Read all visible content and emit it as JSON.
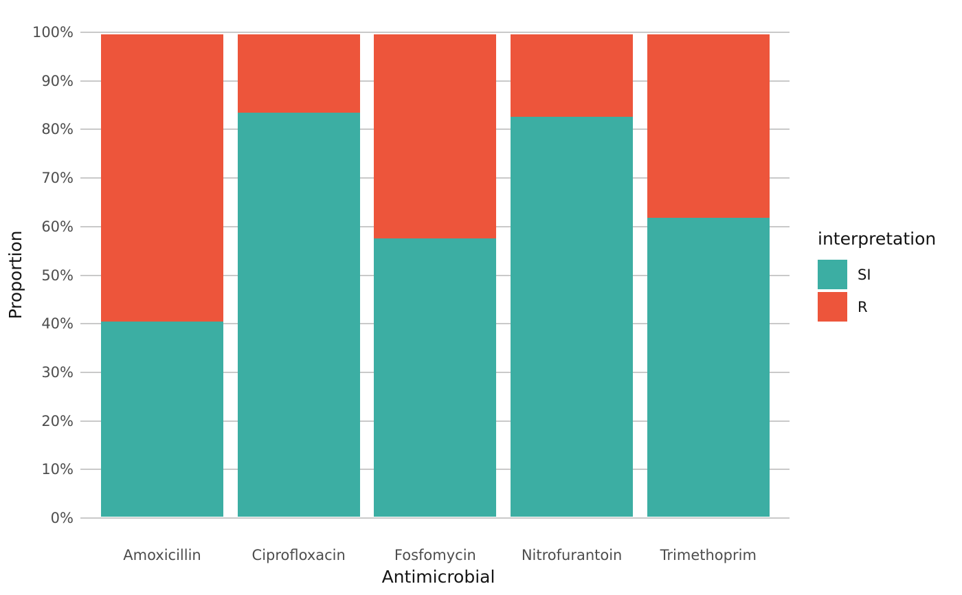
{
  "chart_data": {
    "type": "bar",
    "stacked": true,
    "percent_stack": true,
    "title": "",
    "xlabel": "Antimicrobial",
    "ylabel": "Proportion",
    "categories": [
      "Amoxicillin",
      "Ciprofloxacin",
      "Fosfomycin",
      "Nitrofurantoin",
      "Trimethoprim"
    ],
    "series": [
      {
        "name": "SI",
        "color": "#3CAEA3",
        "values": [
          40.5,
          83.8,
          57.7,
          82.9,
          61.9
        ]
      },
      {
        "name": "R",
        "color": "#ED553B",
        "values": [
          59.5,
          16.2,
          42.3,
          17.1,
          38.1
        ]
      }
    ],
    "ylim": [
      0,
      100
    ],
    "y_ticks": [
      "0%",
      "10%",
      "20%",
      "30%",
      "40%",
      "50%",
      "60%",
      "70%",
      "80%",
      "90%",
      "100%"
    ],
    "grid": "horizontal-major",
    "grid_color": "#C9C9C9",
    "background_color": "#FFFFFF",
    "legend": {
      "title": "interpretation",
      "position": "right",
      "entries": [
        {
          "label": "SI",
          "color": "#3CAEA3"
        },
        {
          "label": "R",
          "color": "#ED553B"
        }
      ]
    }
  }
}
